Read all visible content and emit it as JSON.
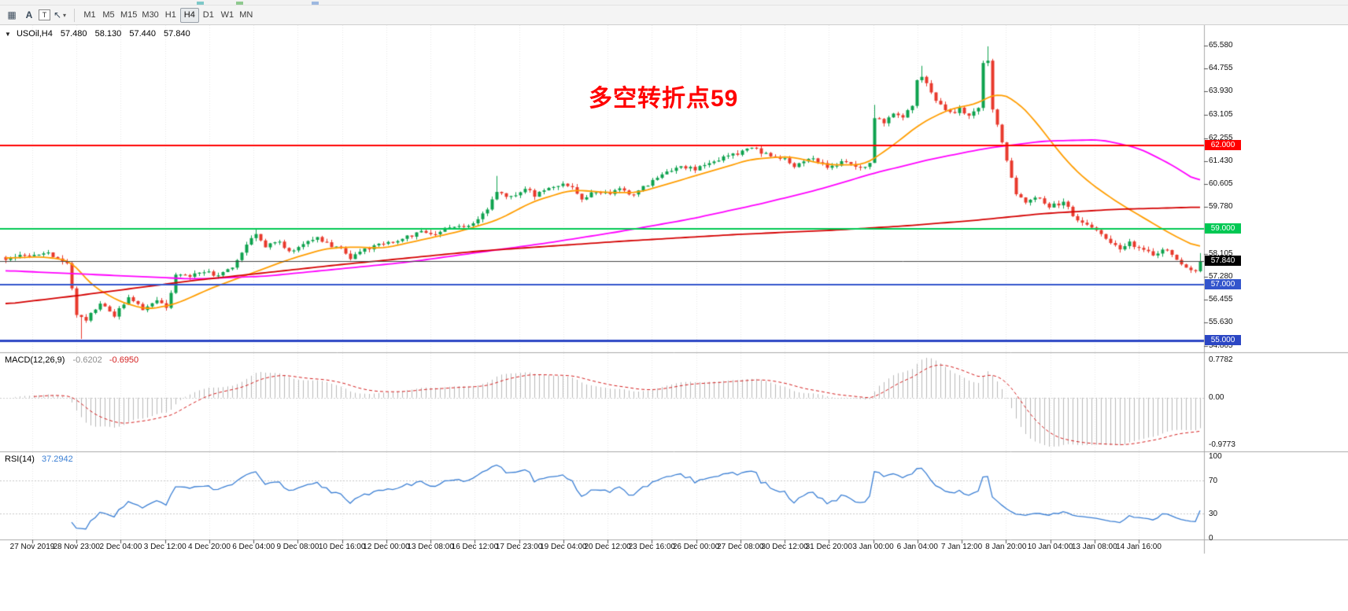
{
  "toolbar": {
    "icons": [
      {
        "name": "grid-icon",
        "glyph": "▦"
      },
      {
        "name": "text-tool-icon",
        "glyph": "A"
      },
      {
        "name": "label-tool-icon",
        "glyph": "T"
      },
      {
        "name": "arrow-tool-icon",
        "glyph": "↖"
      },
      {
        "name": "dropdown-caret-icon",
        "glyph": "▾"
      }
    ],
    "timeframes": [
      "M1",
      "M5",
      "M15",
      "M30",
      "H1",
      "H4",
      "D1",
      "W1",
      "MN"
    ],
    "active_timeframe": "H4"
  },
  "chart": {
    "dropdown_glyph": "▼",
    "symbol_tf": "USOil,H4",
    "ohlc": {
      "open": "57.480",
      "high": "58.130",
      "low": "57.440",
      "close": "57.840"
    },
    "annotation": {
      "text": "多空转折点59",
      "color": "#ff0000"
    },
    "current_price_badge": "57.840"
  },
  "indicators": {
    "macd": {
      "label": "MACD(12,26,9)",
      "main_value": "-0.6202",
      "signal_value": "-0.6950",
      "scale_top": "0.7782",
      "scale_zero": "0.00",
      "scale_bottom": "-0.9773",
      "histogram_color": "#b9b9b9",
      "signal_color": "#d42020"
    },
    "rsi": {
      "label": "RSI(14)",
      "value": "37.2942",
      "scale_labels": [
        "100",
        "70",
        "30",
        "0"
      ],
      "levels": [
        70,
        30
      ],
      "line_color": "#3b7fd4"
    }
  },
  "colors": {
    "up": "#0ea24e",
    "down": "#e8392c",
    "grid": "#e7e7e7",
    "border": "#a8a8a8",
    "axis_text": "#111111",
    "price_line": "#444444",
    "badge_text": "#ffffff"
  },
  "chart_data": {
    "type": "candlestick",
    "symbol": "USOil",
    "timeframe": "H4",
    "y_axis": {
      "ticks": [
        "65.580",
        "64.755",
        "63.930",
        "63.105",
        "62.255",
        "61.430",
        "60.605",
        "59.780",
        "58.105",
        "57.280",
        "56.455",
        "55.630",
        "54.805"
      ]
    },
    "x_axis": {
      "labels": [
        "27 Nov 2019",
        "28 Nov 23:00",
        "2 Dec 04:00",
        "3 Dec 12:00",
        "4 Dec 20:00",
        "6 Dec 04:00",
        "9 Dec 08:00",
        "10 Dec 16:00",
        "12 Dec 00:00",
        "13 Dec 08:00",
        "16 Dec 12:00",
        "17 Dec 23:00",
        "19 Dec 04:00",
        "20 Dec 12:00",
        "23 Dec 16:00",
        "26 Dec 00:00",
        "27 Dec 08:00",
        "30 Dec 12:00",
        "31 Dec 20:00",
        "3 Jan 00:00",
        "6 Jan 04:00",
        "7 Jan 12:00",
        "8 Jan 20:00",
        "10 Jan 04:00",
        "13 Jan 08:00",
        "14 Jan 16:00"
      ]
    },
    "levels": [
      {
        "price": 62.0,
        "label": "62.000",
        "color": "#ff0000",
        "width": 2
      },
      {
        "price": 59.0,
        "label": "59.000",
        "color": "#00c853",
        "width": 2
      },
      {
        "price": 57.0,
        "label": "57.000",
        "color": "#3355cc",
        "width": 2
      },
      {
        "price": 55.0,
        "label": "55.000",
        "color": "#2b46c4",
        "width": 3
      }
    ],
    "current_price": 57.84,
    "candles": {
      "count": 254,
      "seed": 20200114,
      "noise": 0.07,
      "anchors": [
        [
          0,
          57.95
        ],
        [
          5,
          58.05
        ],
        [
          9,
          58.15
        ],
        [
          12,
          57.85
        ],
        [
          13,
          57.7
        ],
        [
          15,
          55.95
        ],
        [
          17,
          55.75
        ],
        [
          20,
          56.35
        ],
        [
          23,
          55.9
        ],
        [
          26,
          56.55
        ],
        [
          29,
          56.1
        ],
        [
          32,
          56.45
        ],
        [
          34,
          56.15
        ],
        [
          36,
          57.35
        ],
        [
          39,
          57.25
        ],
        [
          42,
          57.5
        ],
        [
          45,
          57.3
        ],
        [
          48,
          57.65
        ],
        [
          51,
          58.45
        ],
        [
          53,
          58.75
        ],
        [
          55,
          58.35
        ],
        [
          58,
          58.55
        ],
        [
          60,
          58.15
        ],
        [
          63,
          58.5
        ],
        [
          66,
          58.65
        ],
        [
          69,
          58.4
        ],
        [
          71,
          58.25
        ],
        [
          73,
          57.95
        ],
        [
          76,
          58.25
        ],
        [
          79,
          58.5
        ],
        [
          82,
          58.45
        ],
        [
          85,
          58.7
        ],
        [
          88,
          58.95
        ],
        [
          91,
          58.8
        ],
        [
          94,
          59.1
        ],
        [
          97,
          59.0
        ],
        [
          100,
          59.3
        ],
        [
          102,
          59.7
        ],
        [
          104,
          60.35
        ],
        [
          107,
          60.15
        ],
        [
          110,
          60.45
        ],
        [
          112,
          60.2
        ],
        [
          115,
          60.5
        ],
        [
          118,
          60.65
        ],
        [
          120,
          60.5
        ],
        [
          122,
          60.1
        ],
        [
          124,
          60.3
        ],
        [
          127,
          60.25
        ],
        [
          130,
          60.45
        ],
        [
          132,
          60.2
        ],
        [
          134,
          60.35
        ],
        [
          137,
          60.75
        ],
        [
          140,
          61.0
        ],
        [
          143,
          61.2
        ],
        [
          146,
          61.15
        ],
        [
          149,
          61.4
        ],
        [
          152,
          61.55
        ],
        [
          155,
          61.7
        ],
        [
          158,
          61.9
        ],
        [
          160,
          61.75
        ],
        [
          163,
          61.6
        ],
        [
          165,
          61.5
        ],
        [
          167,
          61.2
        ],
        [
          169,
          61.45
        ],
        [
          171,
          61.55
        ],
        [
          174,
          61.2
        ],
        [
          177,
          61.4
        ],
        [
          180,
          61.25
        ],
        [
          183,
          61.3
        ],
        [
          184,
          63.0
        ],
        [
          186,
          62.8
        ],
        [
          188,
          63.15
        ],
        [
          190,
          63.0
        ],
        [
          192,
          63.4
        ],
        [
          193,
          64.3
        ],
        [
          194,
          64.5
        ],
        [
          196,
          63.9
        ],
        [
          198,
          63.4
        ],
        [
          200,
          63.15
        ],
        [
          202,
          63.3
        ],
        [
          204,
          63.1
        ],
        [
          206,
          63.3
        ],
        [
          207,
          64.9
        ],
        [
          208,
          65.05
        ],
        [
          209,
          63.3
        ],
        [
          210,
          62.8
        ],
        [
          212,
          61.4
        ],
        [
          214,
          60.3
        ],
        [
          216,
          59.9
        ],
        [
          218,
          60.15
        ],
        [
          221,
          59.8
        ],
        [
          224,
          59.95
        ],
        [
          226,
          59.5
        ],
        [
          228,
          59.2
        ],
        [
          231,
          58.9
        ],
        [
          234,
          58.5
        ],
        [
          236,
          58.25
        ],
        [
          238,
          58.5
        ],
        [
          240,
          58.3
        ],
        [
          243,
          58.1
        ],
        [
          246,
          58.25
        ],
        [
          248,
          57.95
        ],
        [
          250,
          57.6
        ],
        [
          252,
          57.48
        ],
        [
          253,
          57.84
        ]
      ],
      "wick_overrides": [
        {
          "i": 16,
          "l": 55.05
        },
        {
          "i": 53,
          "h": 59.0
        },
        {
          "i": 104,
          "h": 60.9
        },
        {
          "i": 184,
          "h": 63.45
        },
        {
          "i": 194,
          "h": 64.85
        },
        {
          "i": 208,
          "h": 65.55
        }
      ],
      "last": {
        "o": 57.48,
        "h": 58.13,
        "l": 57.44,
        "c": 57.84
      }
    },
    "overlays": [
      {
        "name": "ma-fast",
        "color": "#ff9d00",
        "width": 1.8,
        "anchors": [
          [
            0,
            57.95
          ],
          [
            8,
            58.0
          ],
          [
            14,
            57.85
          ],
          [
            18,
            57.0
          ],
          [
            24,
            56.4
          ],
          [
            30,
            56.1
          ],
          [
            36,
            56.3
          ],
          [
            44,
            56.9
          ],
          [
            52,
            57.4
          ],
          [
            60,
            57.9
          ],
          [
            68,
            58.3
          ],
          [
            74,
            58.35
          ],
          [
            80,
            58.3
          ],
          [
            88,
            58.6
          ],
          [
            96,
            58.9
          ],
          [
            104,
            59.3
          ],
          [
            112,
            60.0
          ],
          [
            120,
            60.4
          ],
          [
            128,
            60.3
          ],
          [
            134,
            60.3
          ],
          [
            142,
            60.7
          ],
          [
            150,
            61.1
          ],
          [
            158,
            61.5
          ],
          [
            166,
            61.6
          ],
          [
            174,
            61.3
          ],
          [
            182,
            61.3
          ],
          [
            188,
            62.0
          ],
          [
            194,
            62.8
          ],
          [
            200,
            63.3
          ],
          [
            206,
            63.5
          ],
          [
            210,
            63.9
          ],
          [
            214,
            63.6
          ],
          [
            218,
            62.9
          ],
          [
            222,
            62.0
          ],
          [
            226,
            61.2
          ],
          [
            230,
            60.6
          ],
          [
            236,
            59.9
          ],
          [
            242,
            59.3
          ],
          [
            247,
            58.8
          ],
          [
            253,
            58.3
          ]
        ]
      },
      {
        "name": "ma-mid",
        "color": "#ff00ff",
        "width": 1.8,
        "anchors": [
          [
            0,
            57.5
          ],
          [
            20,
            57.35
          ],
          [
            40,
            57.2
          ],
          [
            55,
            57.3
          ],
          [
            70,
            57.55
          ],
          [
            85,
            57.8
          ],
          [
            100,
            58.15
          ],
          [
            115,
            58.5
          ],
          [
            130,
            58.9
          ],
          [
            145,
            59.35
          ],
          [
            160,
            59.9
          ],
          [
            172,
            60.4
          ],
          [
            184,
            61.0
          ],
          [
            196,
            61.5
          ],
          [
            208,
            61.9
          ],
          [
            220,
            62.15
          ],
          [
            232,
            62.2
          ],
          [
            240,
            61.9
          ],
          [
            247,
            61.3
          ],
          [
            253,
            60.65
          ]
        ]
      },
      {
        "name": "ma-slow",
        "color": "#d40000",
        "width": 1.8,
        "anchors": [
          [
            0,
            56.3
          ],
          [
            15,
            56.6
          ],
          [
            40,
            57.15
          ],
          [
            70,
            57.7
          ],
          [
            100,
            58.2
          ],
          [
            130,
            58.55
          ],
          [
            155,
            58.8
          ],
          [
            175,
            58.95
          ],
          [
            190,
            59.1
          ],
          [
            205,
            59.3
          ],
          [
            220,
            59.55
          ],
          [
            235,
            59.7
          ],
          [
            253,
            59.78
          ]
        ]
      }
    ],
    "indicator_data": [
      {
        "name": "MACD(12,26,9)",
        "shown_values": [
          -0.6202,
          -0.695
        ],
        "scale": [
          0.7782,
          -0.9773
        ]
      },
      {
        "name": "RSI(14)",
        "shown_value": 37.2942,
        "levels": [
          70,
          30
        ],
        "scale": [
          0,
          100
        ]
      }
    ]
  }
}
